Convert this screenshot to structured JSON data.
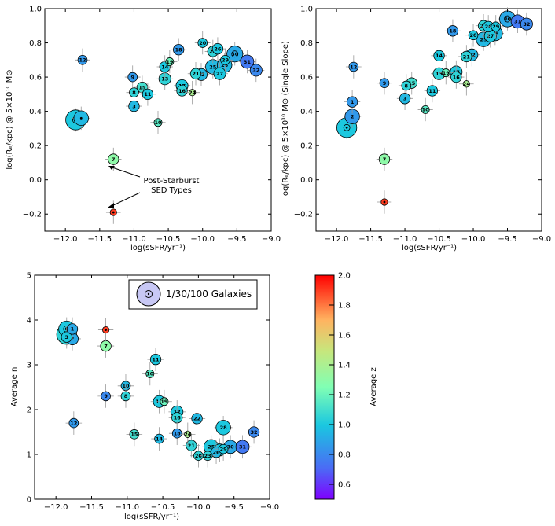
{
  "chart_data": [
    {
      "type": "scatter",
      "panel": "top-left",
      "xlabel": "log(sSFR/yr⁻¹)",
      "ylabel": "log(Rₑ/kpc) @ 5×10¹⁰ M⊙",
      "xlim": [
        -12.3,
        -9.0
      ],
      "ylim": [
        -0.3,
        1.0
      ],
      "xticks": [
        "-12.0",
        "-11.5",
        "-11.0",
        "-10.5",
        "-10.0",
        "-9.5",
        "-9.0"
      ],
      "yticks": [
        "-0.2",
        "0.0",
        "0.2",
        "0.4",
        "0.6",
        "0.8",
        "1.0"
      ],
      "annotation": [
        "Post-Starburst",
        "SED Types"
      ],
      "points": [
        {
          "label": "",
          "x": -11.85,
          "y": 0.35,
          "z": 1.0,
          "size": 12
        },
        {
          "label": "",
          "x": -11.77,
          "y": 0.36,
          "z": 0.95,
          "size": 8
        },
        {
          "label": "12",
          "x": -11.75,
          "y": 0.7,
          "z": 0.85,
          "size": 4
        },
        {
          "label": "9",
          "x": -11.02,
          "y": 0.6,
          "z": 0.85,
          "size": 4
        },
        {
          "label": "7",
          "x": -11.3,
          "y": 0.12,
          "z": 1.3,
          "size": 5
        },
        {
          "label": "",
          "x": -11.3,
          "y": -0.19,
          "z": 1.9,
          "size": 2
        },
        {
          "label": "15",
          "x": -10.88,
          "y": 0.54,
          "z": 1.1,
          "size": 5
        },
        {
          "label": "8",
          "x": -11.0,
          "y": 0.51,
          "z": 1.05,
          "size": 4
        },
        {
          "label": "3",
          "x": -11.0,
          "y": 0.43,
          "z": 0.95,
          "size": 5
        },
        {
          "label": "10",
          "x": -10.65,
          "y": 0.335,
          "z": 1.15,
          "size": 3
        },
        {
          "label": "11",
          "x": -10.8,
          "y": 0.5,
          "z": 1.0,
          "size": 5
        },
        {
          "label": "14",
          "x": -10.55,
          "y": 0.66,
          "z": 1.0,
          "size": 5
        },
        {
          "label": "13",
          "x": -10.55,
          "y": 0.59,
          "z": 1.05,
          "size": 6
        },
        {
          "label": "19",
          "x": -10.48,
          "y": 0.69,
          "z": 1.2,
          "size": 3
        },
        {
          "label": "18",
          "x": -10.35,
          "y": 0.76,
          "z": 0.85,
          "size": 5
        },
        {
          "label": "17",
          "x": -10.3,
          "y": 0.55,
          "z": 1.0,
          "size": 6
        },
        {
          "label": "16",
          "x": -10.3,
          "y": 0.52,
          "z": 1.05,
          "size": 5
        },
        {
          "label": "24",
          "x": -10.15,
          "y": 0.51,
          "z": 1.4,
          "size": 2
        },
        {
          "label": "21",
          "x": -10.1,
          "y": 0.62,
          "z": 1.05,
          "size": 5
        },
        {
          "label": "22",
          "x": -10.02,
          "y": 0.615,
          "z": 0.95,
          "size": 6
        },
        {
          "label": "20",
          "x": -10.0,
          "y": 0.8,
          "z": 1.0,
          "size": 4
        },
        {
          "label": "23",
          "x": -9.85,
          "y": 0.75,
          "z": 1.05,
          "size": 5
        },
        {
          "label": "25",
          "x": -9.85,
          "y": 0.66,
          "z": 0.95,
          "size": 8
        },
        {
          "label": "26",
          "x": -9.78,
          "y": 0.765,
          "z": 1.0,
          "size": 5
        },
        {
          "label": "27",
          "x": -9.75,
          "y": 0.62,
          "z": 1.0,
          "size": 6
        },
        {
          "label": "28",
          "x": -9.68,
          "y": 0.67,
          "z": 0.95,
          "size": 8
        },
        {
          "label": "29",
          "x": -9.67,
          "y": 0.7,
          "z": 1.0,
          "size": 4
        },
        {
          "label": "30",
          "x": -9.53,
          "y": 0.735,
          "z": 0.9,
          "size": 9
        },
        {
          "label": "31",
          "x": -9.35,
          "y": 0.69,
          "z": 0.75,
          "size": 7
        },
        {
          "label": "32",
          "x": -9.22,
          "y": 0.64,
          "z": 0.8,
          "size": 6
        }
      ]
    },
    {
      "type": "scatter",
      "panel": "top-right",
      "xlabel": "log(sSFR/yr⁻¹)",
      "ylabel": "log(Rₑ/kpc) @ 5×10¹⁰ M⊙ (Single Slope)",
      "xlim": [
        -12.3,
        -9.0
      ],
      "ylim": [
        -0.3,
        1.0
      ],
      "xticks": [
        "-12.0",
        "-11.5",
        "-11.0",
        "-10.5",
        "-10.0",
        "-9.5",
        "-9.0"
      ],
      "yticks": [
        "-0.2",
        "0.0",
        "0.2",
        "0.4",
        "0.6",
        "0.8",
        "1.0"
      ],
      "points": [
        {
          "label": "",
          "x": -11.85,
          "y": 0.305,
          "z": 1.0,
          "size": 12
        },
        {
          "label": "2",
          "x": -11.77,
          "y": 0.37,
          "z": 0.85,
          "size": 8
        },
        {
          "label": "1",
          "x": -11.77,
          "y": 0.455,
          "z": 0.85,
          "size": 5
        },
        {
          "label": "12",
          "x": -11.75,
          "y": 0.66,
          "z": 0.85,
          "size": 4
        },
        {
          "label": "9",
          "x": -11.3,
          "y": 0.565,
          "z": 0.85,
          "size": 4
        },
        {
          "label": "7",
          "x": -11.3,
          "y": 0.12,
          "z": 1.3,
          "size": 5
        },
        {
          "label": "",
          "x": -11.3,
          "y": -0.13,
          "z": 1.9,
          "size": 2
        },
        {
          "label": "8",
          "x": -10.98,
          "y": 0.55,
          "z": 1.05,
          "size": 4
        },
        {
          "label": "15",
          "x": -10.9,
          "y": 0.565,
          "z": 1.1,
          "size": 5
        },
        {
          "label": "3",
          "x": -11.0,
          "y": 0.475,
          "z": 0.95,
          "size": 5
        },
        {
          "label": "10",
          "x": -10.7,
          "y": 0.41,
          "z": 1.15,
          "size": 3
        },
        {
          "label": "11",
          "x": -10.6,
          "y": 0.52,
          "z": 1.0,
          "size": 5
        },
        {
          "label": "14",
          "x": -10.5,
          "y": 0.725,
          "z": 1.0,
          "size": 5
        },
        {
          "label": "13",
          "x": -10.5,
          "y": 0.62,
          "z": 1.05,
          "size": 6
        },
        {
          "label": "19",
          "x": -10.4,
          "y": 0.625,
          "z": 1.2,
          "size": 3
        },
        {
          "label": "18",
          "x": -10.3,
          "y": 0.87,
          "z": 0.85,
          "size": 5
        },
        {
          "label": "17",
          "x": -10.25,
          "y": 0.63,
          "z": 1.0,
          "size": 6
        },
        {
          "label": "16",
          "x": -10.25,
          "y": 0.6,
          "z": 1.05,
          "size": 5
        },
        {
          "label": "24",
          "x": -10.1,
          "y": 0.56,
          "z": 1.4,
          "size": 2
        },
        {
          "label": "21",
          "x": -10.1,
          "y": 0.72,
          "z": 1.05,
          "size": 5
        },
        {
          "label": "22",
          "x": -10.02,
          "y": 0.73,
          "z": 0.95,
          "size": 6
        },
        {
          "label": "20",
          "x": -10.0,
          "y": 0.845,
          "z": 1.0,
          "size": 4
        },
        {
          "label": "23",
          "x": -9.85,
          "y": 0.9,
          "z": 1.05,
          "size": 5
        },
        {
          "label": "25",
          "x": -9.85,
          "y": 0.82,
          "z": 0.95,
          "size": 8
        },
        {
          "label": "26",
          "x": -9.78,
          "y": 0.895,
          "z": 1.0,
          "size": 5
        },
        {
          "label": "27",
          "x": -9.75,
          "y": 0.84,
          "z": 1.0,
          "size": 6
        },
        {
          "label": "28",
          "x": -9.68,
          "y": 0.855,
          "z": 0.95,
          "size": 8
        },
        {
          "label": "29",
          "x": -9.67,
          "y": 0.895,
          "z": 1.0,
          "size": 4
        },
        {
          "label": "30",
          "x": -9.5,
          "y": 0.94,
          "z": 0.9,
          "size": 9
        },
        {
          "label": "31",
          "x": -9.35,
          "y": 0.925,
          "z": 0.75,
          "size": 7
        },
        {
          "label": "32",
          "x": -9.22,
          "y": 0.91,
          "z": 0.8,
          "size": 6
        }
      ]
    },
    {
      "type": "scatter",
      "panel": "bottom-left",
      "xlabel": "log(sSFR/yr⁻¹)",
      "ylabel": "Average n",
      "xlim": [
        -12.3,
        -9.0
      ],
      "ylim": [
        0,
        5
      ],
      "xticks": [
        "-12.0",
        "-11.5",
        "-11.0",
        "-10.5",
        "-10.0",
        "-9.5",
        "-9.0"
      ],
      "yticks": [
        "0",
        "1",
        "2",
        "3",
        "4",
        "5"
      ],
      "legend": "1/30/100 Galaxies",
      "points": [
        {
          "label": "6",
          "x": -11.85,
          "y": 3.8,
          "z": 1.0,
          "size": 9
        },
        {
          "label": "4",
          "x": -11.85,
          "y": 3.68,
          "z": 1.05,
          "size": 12
        },
        {
          "label": "3",
          "x": -11.85,
          "y": 3.62,
          "z": 1.0,
          "size": 5
        },
        {
          "label": "1",
          "x": -11.77,
          "y": 3.8,
          "z": 0.9,
          "size": 5
        },
        {
          "label": "2",
          "x": -11.77,
          "y": 3.58,
          "z": 0.9,
          "size": 6
        },
        {
          "label": "12",
          "x": -11.75,
          "y": 1.7,
          "z": 0.85,
          "size": 4
        },
        {
          "label": "",
          "x": -11.3,
          "y": 3.78,
          "z": 1.9,
          "size": 2
        },
        {
          "label": "7",
          "x": -11.3,
          "y": 3.42,
          "z": 1.3,
          "size": 5
        },
        {
          "label": "9",
          "x": -11.3,
          "y": 2.3,
          "z": 0.8,
          "size": 4
        },
        {
          "label": "10",
          "x": -11.02,
          "y": 2.53,
          "z": 0.95,
          "size": 4
        },
        {
          "label": "8",
          "x": -11.02,
          "y": 2.3,
          "z": 1.05,
          "size": 4
        },
        {
          "label": "15",
          "x": -10.9,
          "y": 1.45,
          "z": 1.1,
          "size": 4
        },
        {
          "label": "10",
          "x": -10.68,
          "y": 2.8,
          "z": 1.15,
          "size": 3
        },
        {
          "label": "11",
          "x": -10.6,
          "y": 3.12,
          "z": 1.0,
          "size": 5
        },
        {
          "label": "13",
          "x": -10.55,
          "y": 2.18,
          "z": 1.0,
          "size": 6
        },
        {
          "label": "19",
          "x": -10.48,
          "y": 2.18,
          "z": 1.2,
          "size": 3
        },
        {
          "label": "14",
          "x": -10.55,
          "y": 1.35,
          "z": 0.95,
          "size": 4
        },
        {
          "label": "17",
          "x": -10.3,
          "y": 1.95,
          "z": 1.0,
          "size": 6
        },
        {
          "label": "16",
          "x": -10.3,
          "y": 1.82,
          "z": 1.05,
          "size": 5
        },
        {
          "label": "18",
          "x": -10.3,
          "y": 1.47,
          "z": 0.85,
          "size": 4
        },
        {
          "label": "24",
          "x": -10.15,
          "y": 1.45,
          "z": 1.4,
          "size": 2
        },
        {
          "label": "21",
          "x": -10.1,
          "y": 1.2,
          "z": 1.05,
          "size": 5
        },
        {
          "label": "22",
          "x": -10.02,
          "y": 1.8,
          "z": 0.95,
          "size": 5
        },
        {
          "label": "20",
          "x": -10.0,
          "y": 0.97,
          "z": 1.05,
          "size": 4
        },
        {
          "label": "23",
          "x": -9.87,
          "y": 0.97,
          "z": 1.05,
          "size": 4
        },
        {
          "label": "25",
          "x": -9.82,
          "y": 1.17,
          "z": 1.0,
          "size": 8
        },
        {
          "label": "26",
          "x": -9.75,
          "y": 1.05,
          "z": 0.95,
          "size": 5
        },
        {
          "label": "27",
          "x": -9.7,
          "y": 1.1,
          "z": 1.0,
          "size": 6
        },
        {
          "label": "28",
          "x": -9.65,
          "y": 1.6,
          "z": 1.0,
          "size": 8
        },
        {
          "label": "29",
          "x": -9.65,
          "y": 1.12,
          "z": 1.0,
          "size": 4
        },
        {
          "label": "30",
          "x": -9.55,
          "y": 1.17,
          "z": 0.9,
          "size": 7
        },
        {
          "label": "31",
          "x": -9.38,
          "y": 1.17,
          "z": 0.75,
          "size": 7
        },
        {
          "label": "32",
          "x": -9.22,
          "y": 1.5,
          "z": 0.8,
          "size": 5
        }
      ]
    },
    {
      "type": "colorbar",
      "panel": "bottom-right",
      "label": "Average z",
      "range": [
        0.5,
        2.0
      ],
      "ticks": [
        "0.6",
        "0.8",
        "1.0",
        "1.2",
        "1.4",
        "1.6",
        "1.8",
        "2.0"
      ]
    }
  ]
}
